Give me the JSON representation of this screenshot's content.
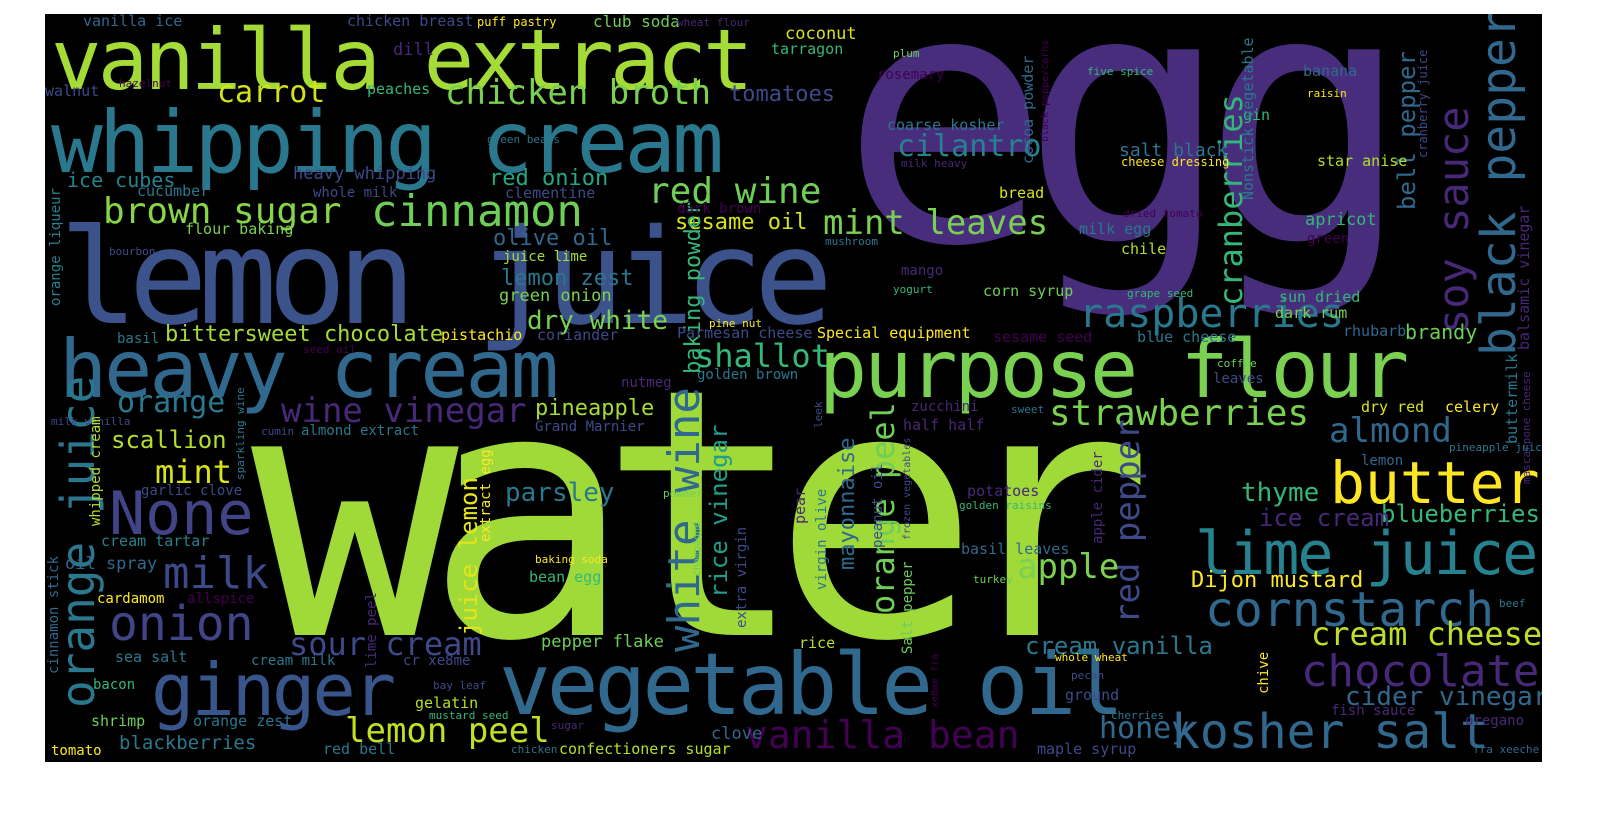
{
  "palette": {
    "yellow": "#fde725",
    "lime": "#b5de2b",
    "light_green": "#6ece58",
    "green": "#35b779",
    "teal_green": "#1f9e89",
    "teal": "#26828e",
    "blue_teal": "#31688e",
    "blue": "#3e4989",
    "indigo": "#482878",
    "dark_purple": "#440154"
  },
  "words": [
    {
      "text": "water",
      "color": "#a0da39"
    },
    {
      "text": "egg",
      "color": "#472d7b"
    },
    {
      "text": "lemon juice",
      "color": "#3b528b"
    },
    {
      "text": "vanilla extract",
      "color": "#a5db36"
    },
    {
      "text": "whipping cream",
      "color": "#2a788e"
    },
    {
      "text": "heavy cream",
      "color": "#31688e"
    },
    {
      "text": "purpose flour",
      "color": "#7ad151"
    },
    {
      "text": "vegetable oil",
      "color": "#31688e"
    },
    {
      "text": "ginger",
      "color": "#39568c"
    },
    {
      "text": "orange juice",
      "color": "#2a788e"
    },
    {
      "text": "None",
      "color": "#414487"
    },
    {
      "text": "cinnamon",
      "color": "#6ece58"
    },
    {
      "text": "brown sugar",
      "color": "#86d549"
    },
    {
      "text": "red wine",
      "color": "#6ece58"
    },
    {
      "text": "lime juice",
      "color": "#26828e"
    },
    {
      "text": "butter",
      "color": "#fde725"
    },
    {
      "text": "cornstarch",
      "color": "#31688e"
    },
    {
      "text": "chocolate",
      "color": "#482878"
    },
    {
      "text": "kosher salt",
      "color": "#31688e"
    },
    {
      "text": "black pepper",
      "color": "#31688e"
    },
    {
      "text": "soy sauce",
      "color": "#482878"
    },
    {
      "text": "raspberries",
      "color": "#2a788e"
    },
    {
      "text": "strawberries",
      "color": "#7ad151"
    },
    {
      "text": "cream cheese",
      "color": "#bddf26"
    },
    {
      "text": "chicken broth",
      "color": "#7ad151"
    },
    {
      "text": "white wine",
      "color": "#31688e"
    },
    {
      "text": "onion",
      "color": "#414487"
    },
    {
      "text": "milk",
      "color": "#3e4989"
    },
    {
      "text": "wine vinegar",
      "color": "#482878"
    },
    {
      "text": "vanilla bean",
      "color": "#440154"
    },
    {
      "text": "mint leaves",
      "color": "#7ad151"
    },
    {
      "text": "cilantro",
      "color": "#26828e"
    },
    {
      "text": "orange peel",
      "color": "#6ece58"
    },
    {
      "text": "red pepper",
      "color": "#3e4989"
    },
    {
      "text": "cranberries",
      "color": "#35b779"
    },
    {
      "text": "carrot",
      "color": "#d2e21b"
    },
    {
      "text": "orange",
      "color": "#2a788e"
    },
    {
      "text": "mint",
      "color": "#d8e219"
    },
    {
      "text": "lemon peel",
      "color": "#c2df23"
    },
    {
      "text": "sour cream",
      "color": "#3e4989"
    },
    {
      "text": "shallot",
      "color": "#35b779"
    },
    {
      "text": "apple",
      "color": "#7ad151"
    },
    {
      "text": "almond",
      "color": "#31688e"
    },
    {
      "text": "honey",
      "color": "#31688e"
    },
    {
      "text": "cider vinegar",
      "color": "#31688e"
    },
    {
      "text": "parsley",
      "color": "#2a788e"
    },
    {
      "text": "thyme",
      "color": "#35b779"
    },
    {
      "text": "blueberries",
      "color": "#35b779"
    },
    {
      "text": "ice cream",
      "color": "#482878"
    },
    {
      "text": "Dijon mustard",
      "color": "#fde725"
    },
    {
      "text": "cream vanilla",
      "color": "#2a788e"
    },
    {
      "text": "pineapple",
      "color": "#a5db36"
    },
    {
      "text": "scallion",
      "color": "#b5de2b"
    },
    {
      "text": "bittersweet chocolate",
      "color": "#a5db36"
    },
    {
      "text": "dry white",
      "color": "#7ad151"
    },
    {
      "text": "olive oil",
      "color": "#31688e"
    },
    {
      "text": "lemon zest",
      "color": "#2a788e"
    },
    {
      "text": "red onion",
      "color": "#22a884"
    },
    {
      "text": "tomatoes",
      "color": "#3e4989"
    },
    {
      "text": "sesame oil",
      "color": "#d8e219"
    },
    {
      "text": "baking powder",
      "color": "#35b779"
    },
    {
      "text": "rice vinegar",
      "color": "#1f9e89"
    },
    {
      "text": "mayonnaise",
      "color": "#31688e"
    },
    {
      "text": "juice lemon",
      "color": "#e5e419"
    },
    {
      "text": "bell pepper",
      "color": "#31688e"
    },
    {
      "text": "brandy",
      "color": "#6ece58"
    },
    {
      "text": "ice cubes",
      "color": "#26828e"
    },
    {
      "text": "heavy whipping",
      "color": "#3e4989"
    },
    {
      "text": "vanilla ice",
      "color": "#31688e"
    },
    {
      "text": "chicken breast",
      "color": "#3e4989"
    },
    {
      "text": "puff pastry",
      "color": "#fde725"
    },
    {
      "text": "club soda",
      "color": "#6ece58"
    },
    {
      "text": "wheat flour",
      "color": "#482878"
    },
    {
      "text": "coconut",
      "color": "#d8e219"
    },
    {
      "text": "tarragon",
      "color": "#35b779"
    },
    {
      "text": "plum",
      "color": "#6ece58"
    },
    {
      "text": "dill",
      "color": "#482878"
    },
    {
      "text": "walnut",
      "color": "#3e4989"
    },
    {
      "text": "hazelnut",
      "color": "#440154"
    },
    {
      "text": "peaches",
      "color": "#35b779"
    },
    {
      "text": "rosemary",
      "color": "#440154"
    },
    {
      "text": "five spice",
      "color": "#35b779"
    },
    {
      "text": "banana",
      "color": "#31688e"
    },
    {
      "text": "raisin",
      "color": "#fde725"
    },
    {
      "text": "green beans",
      "color": "#2a788e"
    },
    {
      "text": "coarse kosher",
      "color": "#2a788e"
    },
    {
      "text": "cocoa powder",
      "color": "#31688e"
    },
    {
      "text": "salt black",
      "color": "#2a788e"
    },
    {
      "text": "gin",
      "color": "#35b779"
    },
    {
      "text": "cheese dressing",
      "color": "#fde725"
    },
    {
      "text": "star anise",
      "color": "#b5de2b"
    },
    {
      "text": "cranberry juice",
      "color": "#3e4989"
    },
    {
      "text": "milk heavy",
      "color": "#482878"
    },
    {
      "text": "black peppercorns",
      "color": "#440154"
    },
    {
      "text": "Nonstick vegetable",
      "color": "#2a788e"
    },
    {
      "text": "cucumber",
      "color": "#2a788e"
    },
    {
      "text": "whole milk",
      "color": "#3e4989"
    },
    {
      "text": "clementine",
      "color": "#3e4989"
    },
    {
      "text": "bread",
      "color": "#d8e219"
    },
    {
      "text": "dark brown",
      "color": "#440154"
    },
    {
      "text": "dried tomato",
      "color": "#440154"
    },
    {
      "text": "apricot",
      "color": "#35b779"
    },
    {
      "text": "green",
      "color": "#440154"
    },
    {
      "text": "flour baking",
      "color": "#7ad151"
    },
    {
      "text": "milk egg",
      "color": "#2a788e"
    },
    {
      "text": "chile",
      "color": "#b5de2b"
    },
    {
      "text": "mushroom",
      "color": "#2a788e"
    },
    {
      "text": "balsamic vinegar",
      "color": "#482878"
    },
    {
      "text": "buttermilk",
      "color": "#2a788e"
    },
    {
      "text": "mascarpone cheese",
      "color": "#482878"
    },
    {
      "text": "bourbon",
      "color": "#3e4989"
    },
    {
      "text": "orange liqueur",
      "color": "#26828e"
    },
    {
      "text": "juice lime",
      "color": "#a5db36"
    },
    {
      "text": "green onion",
      "color": "#7ad151"
    },
    {
      "text": "mango",
      "color": "#482878"
    },
    {
      "text": "yogurt",
      "color": "#35b779"
    },
    {
      "text": "corn syrup",
      "color": "#6ece58"
    },
    {
      "text": "grape seed",
      "color": "#35b779"
    },
    {
      "text": "sun dried",
      "color": "#35b779"
    },
    {
      "text": "dark rum",
      "color": "#7ad151"
    },
    {
      "text": "rhubarb",
      "color": "#31688e"
    },
    {
      "text": "basil",
      "color": "#2a788e"
    },
    {
      "text": "pistachio",
      "color": "#fde725"
    },
    {
      "text": "coriander",
      "color": "#3e4989"
    },
    {
      "text": "Parmesan cheese",
      "color": "#3e4989"
    },
    {
      "text": "Special equipment",
      "color": "#fde725"
    },
    {
      "text": "sesame seed",
      "color": "#440154"
    },
    {
      "text": "blue cheese",
      "color": "#2a788e"
    },
    {
      "text": "seed oil",
      "color": "#440154"
    },
    {
      "text": "golden brown",
      "color": "#2a788e"
    },
    {
      "text": "nutmeg",
      "color": "#482878"
    },
    {
      "text": "coffee",
      "color": "#6ece58"
    },
    {
      "text": "leaves",
      "color": "#3e4989"
    },
    {
      "text": "pine nut",
      "color": "#fde725"
    },
    {
      "text": "zucchini",
      "color": "#482878"
    },
    {
      "text": "sweet",
      "color": "#2a788e"
    },
    {
      "text": "dry red",
      "color": "#d8e219"
    },
    {
      "text": "celery",
      "color": "#fde725"
    },
    {
      "text": "milk vanilla",
      "color": "#3e4989"
    },
    {
      "text": "cumin",
      "color": "#3e4989"
    },
    {
      "text": "almond extract",
      "color": "#2a788e"
    },
    {
      "text": "sparkling wine",
      "color": "#2a788e"
    },
    {
      "text": "Grand Marnier",
      "color": "#3e4989"
    },
    {
      "text": "leek",
      "color": "#3e4989"
    },
    {
      "text": "half half",
      "color": "#482878"
    },
    {
      "text": "pineapple juice",
      "color": "#2a788e"
    },
    {
      "text": "lemon",
      "color": "#31688e"
    },
    {
      "text": "whipped cream",
      "color": "#b5de2b"
    },
    {
      "text": "garlic clove",
      "color": "#3e4989"
    },
    {
      "text": "extract egg",
      "color": "#fde725"
    },
    {
      "text": "powder",
      "color": "#6ece58"
    },
    {
      "text": "frozen vegetables",
      "color": "#3e4989"
    },
    {
      "text": "potatoes",
      "color": "#482878"
    },
    {
      "text": "golden raisins",
      "color": "#35b779"
    },
    {
      "text": "apple cider",
      "color": "#482878"
    },
    {
      "text": "pear",
      "color": "#482878"
    },
    {
      "text": "peanut oil",
      "color": "#3e4989"
    },
    {
      "text": "virgin olive",
      "color": "#2a788e"
    },
    {
      "text": "cream tartar",
      "color": "#26828e"
    },
    {
      "text": "cinnamon stick",
      "color": "#31688e"
    },
    {
      "text": "oil spray",
      "color": "#31688e"
    },
    {
      "text": "basil leaves",
      "color": "#31688e"
    },
    {
      "text": "baking soda",
      "color": "#fde725"
    },
    {
      "text": "champagne",
      "color": "#6ece58"
    },
    {
      "text": "extra virgin",
      "color": "#3e4989"
    },
    {
      "text": "turkey",
      "color": "#6ece58"
    },
    {
      "text": "bean egg",
      "color": "#35b779"
    },
    {
      "text": "Salt pepper",
      "color": "#6ece58"
    },
    {
      "text": "cardamom",
      "color": "#fde725"
    },
    {
      "text": "allspice",
      "color": "#440154"
    },
    {
      "text": "lime peel",
      "color": "#482878"
    },
    {
      "text": "pepper flake",
      "color": "#6ece58"
    },
    {
      "text": "rice",
      "color": "#b5de2b"
    },
    {
      "text": "sea salt",
      "color": "#2a788e"
    },
    {
      "text": "cream milk",
      "color": "#2a788e"
    },
    {
      "text": "cr xe8me",
      "color": "#3e4989"
    },
    {
      "text": "whole wheat",
      "color": "#fde725"
    },
    {
      "text": "chive",
      "color": "#fde725"
    },
    {
      "text": "xe8me fra",
      "color": "#440154"
    },
    {
      "text": "bacon",
      "color": "#35b779"
    },
    {
      "text": "bay leaf",
      "color": "#3e4989"
    },
    {
      "text": "pecan",
      "color": "#3e4989"
    },
    {
      "text": "ground",
      "color": "#3e4989"
    },
    {
      "text": "gelatin",
      "color": "#b5de2b"
    },
    {
      "text": "mustard seed",
      "color": "#35b779"
    },
    {
      "text": "cherries",
      "color": "#2a788e"
    },
    {
      "text": "fish sauce",
      "color": "#482878"
    },
    {
      "text": "beef",
      "color": "#2a788e"
    },
    {
      "text": "oregano",
      "color": "#482878"
    },
    {
      "text": "shrimp",
      "color": "#6ece58"
    },
    {
      "text": "orange zest",
      "color": "#2a788e"
    },
    {
      "text": "sugar",
      "color": "#482878"
    },
    {
      "text": "clove",
      "color": "#31688e"
    },
    {
      "text": "blackberries",
      "color": "#2a788e"
    },
    {
      "text": "tomato",
      "color": "#fde725"
    },
    {
      "text": "red bell",
      "color": "#2a788e"
    },
    {
      "text": "chicken",
      "color": "#2a788e"
    },
    {
      "text": "confectioners sugar",
      "color": "#b5de2b"
    },
    {
      "text": "maple syrup",
      "color": "#3e4989"
    },
    {
      "text": "fra xeeche",
      "color": "#31688e"
    }
  ]
}
